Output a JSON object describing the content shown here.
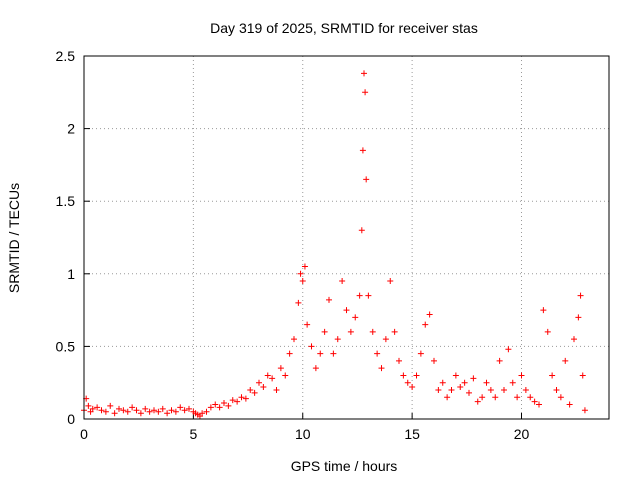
{
  "chart_data": {
    "type": "scatter",
    "title": "Day 319 of 2025, SRMTID for receiver stas",
    "xlabel": "GPS time / hours",
    "ylabel": "SRMTID / TECUs",
    "xlim": [
      0,
      24
    ],
    "ylim": [
      0,
      2.5
    ],
    "xticks": [
      0,
      5,
      10,
      15,
      20
    ],
    "yticks": [
      0,
      0.5,
      1,
      1.5,
      2,
      2.5
    ],
    "xtick_labels": [
      "0",
      "5",
      "10",
      "15",
      "20"
    ],
    "ytick_labels": [
      "0",
      "0.5",
      "1",
      "1.5",
      "2",
      "2.5"
    ],
    "grid": true,
    "marker": "+",
    "series": [
      {
        "name": "SRMTID",
        "color": "#ff0000",
        "x": [
          0.0,
          0.1,
          0.2,
          0.3,
          0.4,
          0.6,
          0.8,
          1.0,
          1.2,
          1.4,
          1.6,
          1.8,
          2.0,
          2.2,
          2.4,
          2.6,
          2.8,
          3.0,
          3.2,
          3.4,
          3.6,
          3.8,
          4.0,
          4.2,
          4.4,
          4.6,
          4.8,
          5.0,
          5.1,
          5.2,
          5.3,
          5.4,
          5.6,
          5.8,
          6.0,
          6.2,
          6.4,
          6.6,
          6.8,
          7.0,
          7.2,
          7.4,
          7.6,
          7.8,
          8.0,
          8.2,
          8.4,
          8.6,
          8.8,
          9.0,
          9.2,
          9.4,
          9.6,
          9.8,
          9.9,
          10.0,
          10.1,
          10.2,
          10.4,
          10.6,
          10.8,
          11.0,
          11.2,
          11.4,
          11.6,
          11.8,
          12.0,
          12.2,
          12.4,
          12.6,
          12.7,
          12.75,
          12.8,
          12.85,
          12.9,
          13.0,
          13.2,
          13.4,
          13.6,
          13.8,
          14.0,
          14.2,
          14.4,
          14.6,
          14.8,
          15.0,
          15.2,
          15.4,
          15.6,
          15.8,
          16.0,
          16.2,
          16.4,
          16.6,
          16.8,
          17.0,
          17.2,
          17.4,
          17.6,
          17.8,
          18.0,
          18.2,
          18.4,
          18.6,
          18.8,
          19.0,
          19.2,
          19.4,
          19.6,
          19.8,
          20.0,
          20.2,
          20.4,
          20.6,
          20.8,
          21.0,
          21.2,
          21.4,
          21.6,
          21.8,
          22.0,
          22.2,
          22.4,
          22.6,
          22.7,
          22.8,
          22.9
        ],
        "y": [
          0.06,
          0.14,
          0.09,
          0.05,
          0.07,
          0.08,
          0.06,
          0.05,
          0.09,
          0.04,
          0.07,
          0.06,
          0.05,
          0.08,
          0.06,
          0.04,
          0.07,
          0.05,
          0.06,
          0.05,
          0.07,
          0.04,
          0.06,
          0.05,
          0.08,
          0.06,
          0.07,
          0.05,
          0.04,
          0.03,
          0.02,
          0.04,
          0.05,
          0.08,
          0.1,
          0.08,
          0.11,
          0.09,
          0.13,
          0.12,
          0.15,
          0.14,
          0.2,
          0.18,
          0.25,
          0.22,
          0.3,
          0.28,
          0.2,
          0.35,
          0.3,
          0.45,
          0.55,
          0.8,
          1.0,
          0.95,
          1.05,
          0.65,
          0.5,
          0.35,
          0.45,
          0.6,
          0.82,
          0.45,
          0.55,
          0.95,
          0.75,
          0.6,
          0.7,
          0.85,
          1.3,
          1.85,
          2.38,
          2.25,
          1.65,
          0.85,
          0.6,
          0.45,
          0.35,
          0.55,
          0.95,
          0.6,
          0.4,
          0.3,
          0.25,
          0.22,
          0.3,
          0.45,
          0.65,
          0.72,
          0.4,
          0.2,
          0.25,
          0.15,
          0.2,
          0.3,
          0.22,
          0.25,
          0.18,
          0.28,
          0.12,
          0.15,
          0.25,
          0.2,
          0.15,
          0.4,
          0.2,
          0.48,
          0.25,
          0.15,
          0.3,
          0.2,
          0.15,
          0.12,
          0.1,
          0.75,
          0.6,
          0.3,
          0.2,
          0.15,
          0.4,
          0.1,
          0.55,
          0.7,
          0.85,
          0.3,
          0.06
        ]
      }
    ]
  }
}
